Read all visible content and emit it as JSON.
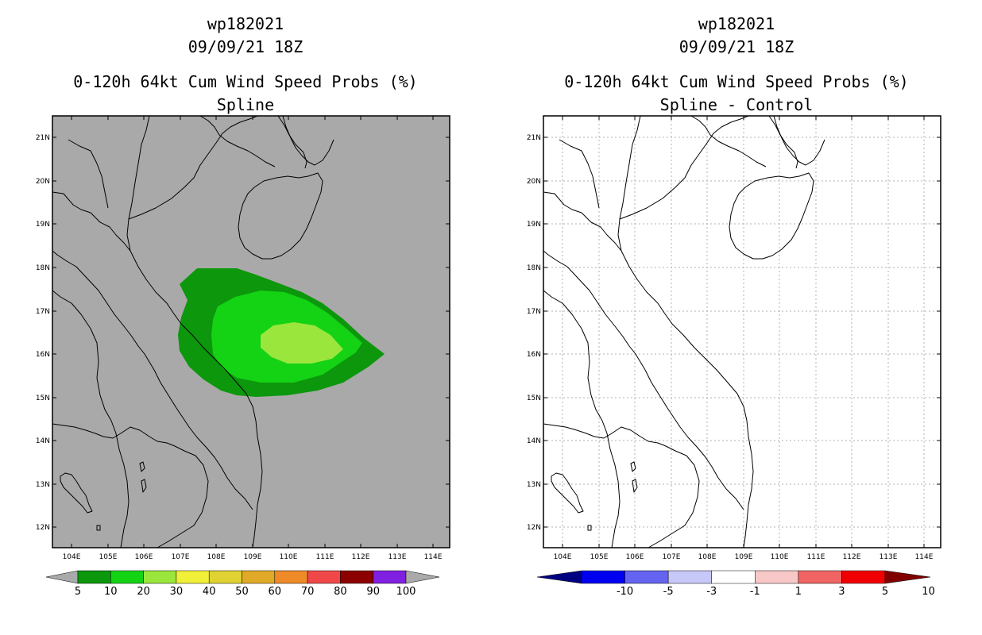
{
  "left": {
    "title_line1": "wp182021",
    "title_line2": "09/09/21 18Z",
    "title_line3": "0-120h 64kt Cum Wind Speed Probs (%)",
    "title_line4": "Spline",
    "background_color": "#a9a9a9",
    "colorbar": {
      "colors": [
        "#aaaaaa",
        "#0c970c",
        "#14d214",
        "#9ae63c",
        "#f0f038",
        "#e0d232",
        "#e0aa28",
        "#ee8a28",
        "#f04848",
        "#8c0000",
        "#8020e0",
        "#aaaaaa"
      ],
      "labels": [
        "5",
        "10",
        "20",
        "30",
        "40",
        "50",
        "60",
        "70",
        "80",
        "90",
        "100"
      ]
    },
    "probability_bands": [
      {
        "range": "5-10",
        "color": "#0c970c"
      },
      {
        "range": "10-20",
        "color": "#14d214"
      },
      {
        "range": "20-30",
        "color": "#9ae63c"
      }
    ]
  },
  "right": {
    "title_line1": "wp182021",
    "title_line2": "09/09/21 18Z",
    "title_line3": "0-120h 64kt Cum Wind Speed Probs (%)",
    "title_line4": "Spline - Control",
    "background_color": "#ffffff",
    "colorbar": {
      "colors": [
        "#000080",
        "#0000f0",
        "#6464f0",
        "#c8c8f8",
        "#ffffff",
        "#f8c8c8",
        "#f06464",
        "#f00000",
        "#800000"
      ],
      "labels": [
        "-10",
        "-5",
        "-3",
        "-1",
        "1",
        "3",
        "5",
        "10"
      ]
    }
  },
  "axes": {
    "x_labels": [
      "104E",
      "105E",
      "106E",
      "107E",
      "108E",
      "109E",
      "110E",
      "111E",
      "112E",
      "113E",
      "114E"
    ],
    "y_labels": [
      "21N",
      "20N",
      "19N",
      "18N",
      "17N",
      "16N",
      "15N",
      "14N",
      "13N",
      "12N"
    ]
  }
}
